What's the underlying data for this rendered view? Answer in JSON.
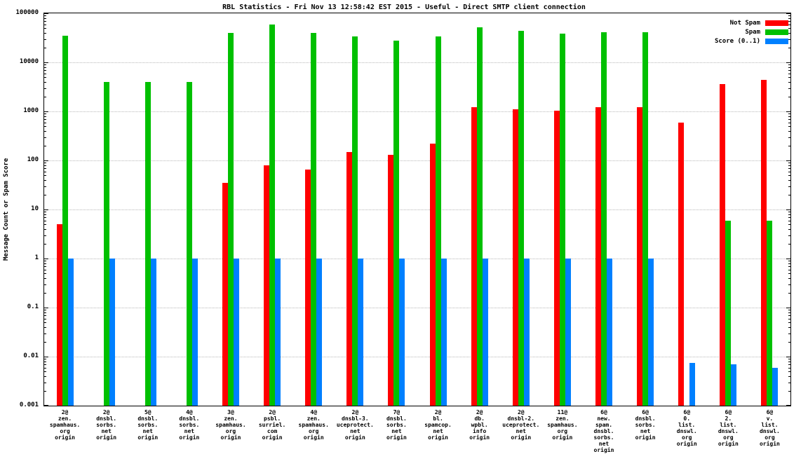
{
  "title": "RBL Statistics - Fri Nov 13 12:58:42 EST 2015 - Useful - Direct SMTP client connection",
  "ylabel": "Message Count or Spam Score",
  "legend": {
    "items": [
      {
        "label": "Not Spam",
        "color": "#ff0000"
      },
      {
        "label": "Spam",
        "color": "#00c000"
      },
      {
        "label": "Score (0..1)",
        "color": "#0080ff"
      }
    ]
  },
  "chart_data": {
    "type": "bar",
    "title": "RBL Statistics - Fri Nov 13 12:58:42 EST 2015 - Useful - Direct SMTP client connection",
    "ylabel": "Message Count or Spam Score",
    "y_scale": "log",
    "ylim": [
      0.001,
      100000
    ],
    "yticks": [
      100000,
      10000,
      1000,
      100,
      10,
      1,
      0.1,
      0.01,
      0.001
    ],
    "ytick_labels": [
      "100000",
      "10000",
      "1000",
      "100",
      "10",
      "1",
      "0.1",
      "0.01",
      "0.001"
    ],
    "grid": true,
    "legend_position": "top-right",
    "categories": [
      [
        "2@",
        "zen.",
        "spamhaus.",
        "org",
        "origin"
      ],
      [
        "2@",
        "dnsbl.",
        "sorbs.",
        "net",
        "origin"
      ],
      [
        "5@",
        "dnsbl.",
        "sorbs.",
        "net",
        "origin"
      ],
      [
        "4@",
        "dnsbl.",
        "sorbs.",
        "net",
        "origin"
      ],
      [
        "3@",
        "zen.",
        "spamhaus.",
        "org",
        "origin"
      ],
      [
        "2@",
        "psbl.",
        "surriel.",
        "com",
        "origin"
      ],
      [
        "4@",
        "zen.",
        "spamhaus.",
        "org",
        "origin"
      ],
      [
        "2@",
        "dnsbl-3.",
        "uceprotect.",
        "net",
        "origin"
      ],
      [
        "7@",
        "dnsbl.",
        "sorbs.",
        "net",
        "origin"
      ],
      [
        "2@",
        "bl.",
        "spamcop.",
        "net",
        "origin"
      ],
      [
        "2@",
        "db.",
        "wpbl.",
        "info",
        "origin"
      ],
      [
        "2@",
        "dnsbl-2.",
        "uceprotect.",
        "net",
        "origin"
      ],
      [
        "11@",
        "zen.",
        "spamhaus.",
        "org",
        "origin"
      ],
      [
        "6@",
        "new.",
        "spam.",
        "dnsbl.",
        "sorbs.",
        "net",
        "origin"
      ],
      [
        "6@",
        "dnsbl.",
        "sorbs.",
        "net",
        "origin"
      ],
      [
        "6@",
        "0.",
        "list.",
        "dnswl.",
        "org",
        "origin"
      ],
      [
        "6@",
        "2.",
        "list.",
        "dnswl.",
        "org",
        "origin"
      ],
      [
        "6@",
        "v.",
        "list.",
        "dnswl.",
        "org",
        "origin"
      ]
    ],
    "series": [
      {
        "name": "Not Spam",
        "color": "#ff0000",
        "values": [
          5,
          null,
          null,
          null,
          35,
          80,
          65,
          150,
          130,
          220,
          1200,
          1100,
          1050,
          1200,
          1200,
          600,
          3600,
          4400
        ]
      },
      {
        "name": "Spam",
        "color": "#00c000",
        "values": [
          35000,
          4000,
          4000,
          4000,
          40000,
          60000,
          40000,
          34000,
          28000,
          34000,
          52000,
          44000,
          38000,
          41000,
          41000,
          null,
          6,
          6
        ]
      },
      {
        "name": "Score (0..1)",
        "color": "#0080ff",
        "values": [
          1,
          1,
          1,
          1,
          1,
          1,
          1,
          1,
          1,
          1,
          1,
          1,
          1,
          1,
          1,
          0.0075,
          0.007,
          0.006
        ]
      }
    ]
  }
}
